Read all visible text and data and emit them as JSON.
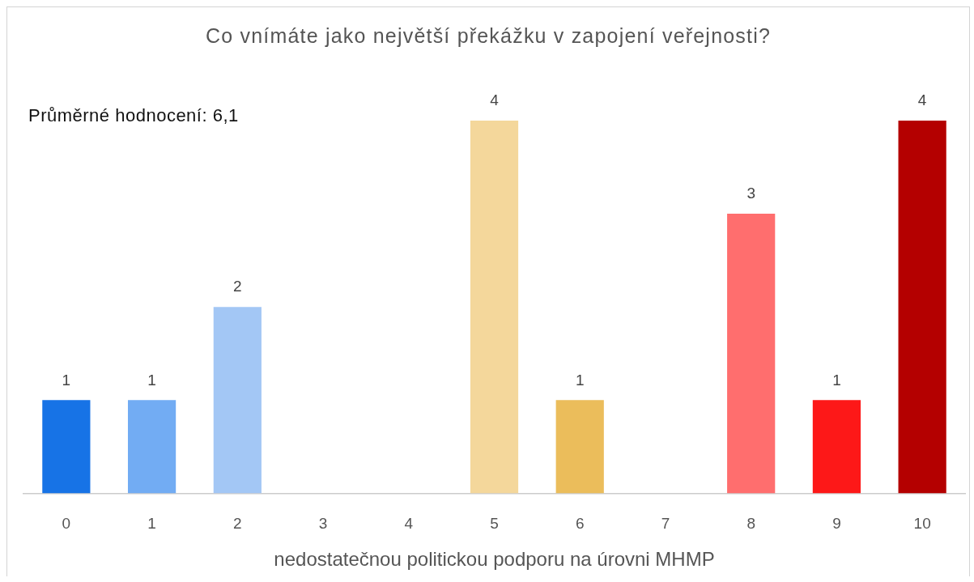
{
  "chart_data": {
    "type": "bar",
    "title": "Co vnímáte jako největší překážku v zapojení veřejnosti?",
    "xlabel": "nedostatečnou politickou podporu na úrovni MHMP",
    "annotations": [
      "Průměrné hodnocení: 6,1"
    ],
    "categories": [
      "0",
      "1",
      "2",
      "3",
      "4",
      "5",
      "6",
      "7",
      "8",
      "9",
      "10"
    ],
    "values": [
      1,
      1,
      2,
      0,
      0,
      4,
      1,
      0,
      3,
      1,
      4
    ],
    "colors": [
      "#1773e6",
      "#72acf3",
      "#a3c7f5",
      null,
      null,
      "#f4d79b",
      "#ebbd5b",
      null,
      "#ff6e6e",
      "#fd1818",
      "#b40000"
    ],
    "value_labels": [
      "1",
      "1",
      "2",
      null,
      null,
      "4",
      "1",
      null,
      "3",
      "1",
      "4"
    ],
    "tick_labels": "x"
  }
}
